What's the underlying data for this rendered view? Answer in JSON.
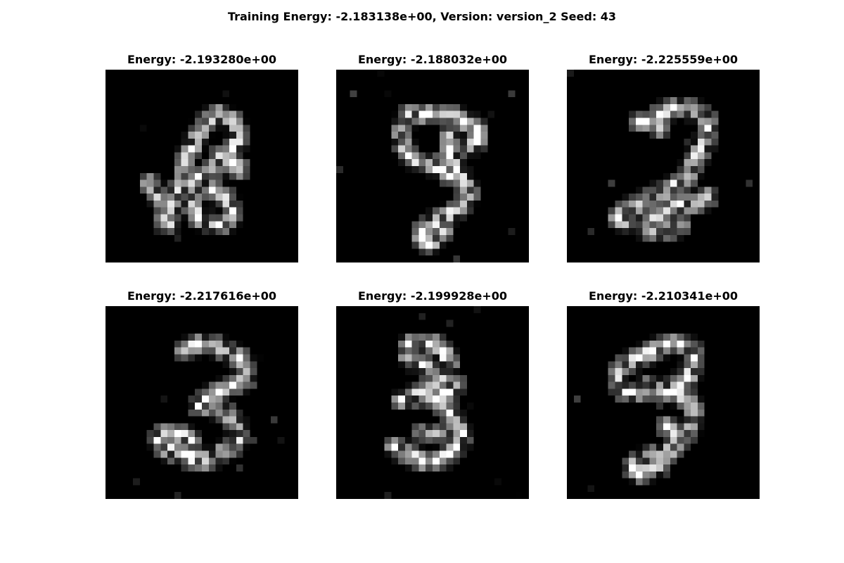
{
  "figure": {
    "suptitle": "Training Energy: -2.183138e+00, Version: version_2 Seed: 43"
  },
  "panels": [
    {
      "title": "Energy: -2.193280e+00",
      "colormap": "gray"
    },
    {
      "title": "Energy: -2.188032e+00",
      "colormap": "gray"
    },
    {
      "title": "Energy: -2.225559e+00",
      "colormap": "gray"
    },
    {
      "title": "Energy: -2.217616e+00",
      "colormap": "gray"
    },
    {
      "title": "Energy: -2.199928e+00",
      "colormap": "gray"
    },
    {
      "title": "Energy: -2.210341e+00",
      "colormap": "gray"
    }
  ]
}
